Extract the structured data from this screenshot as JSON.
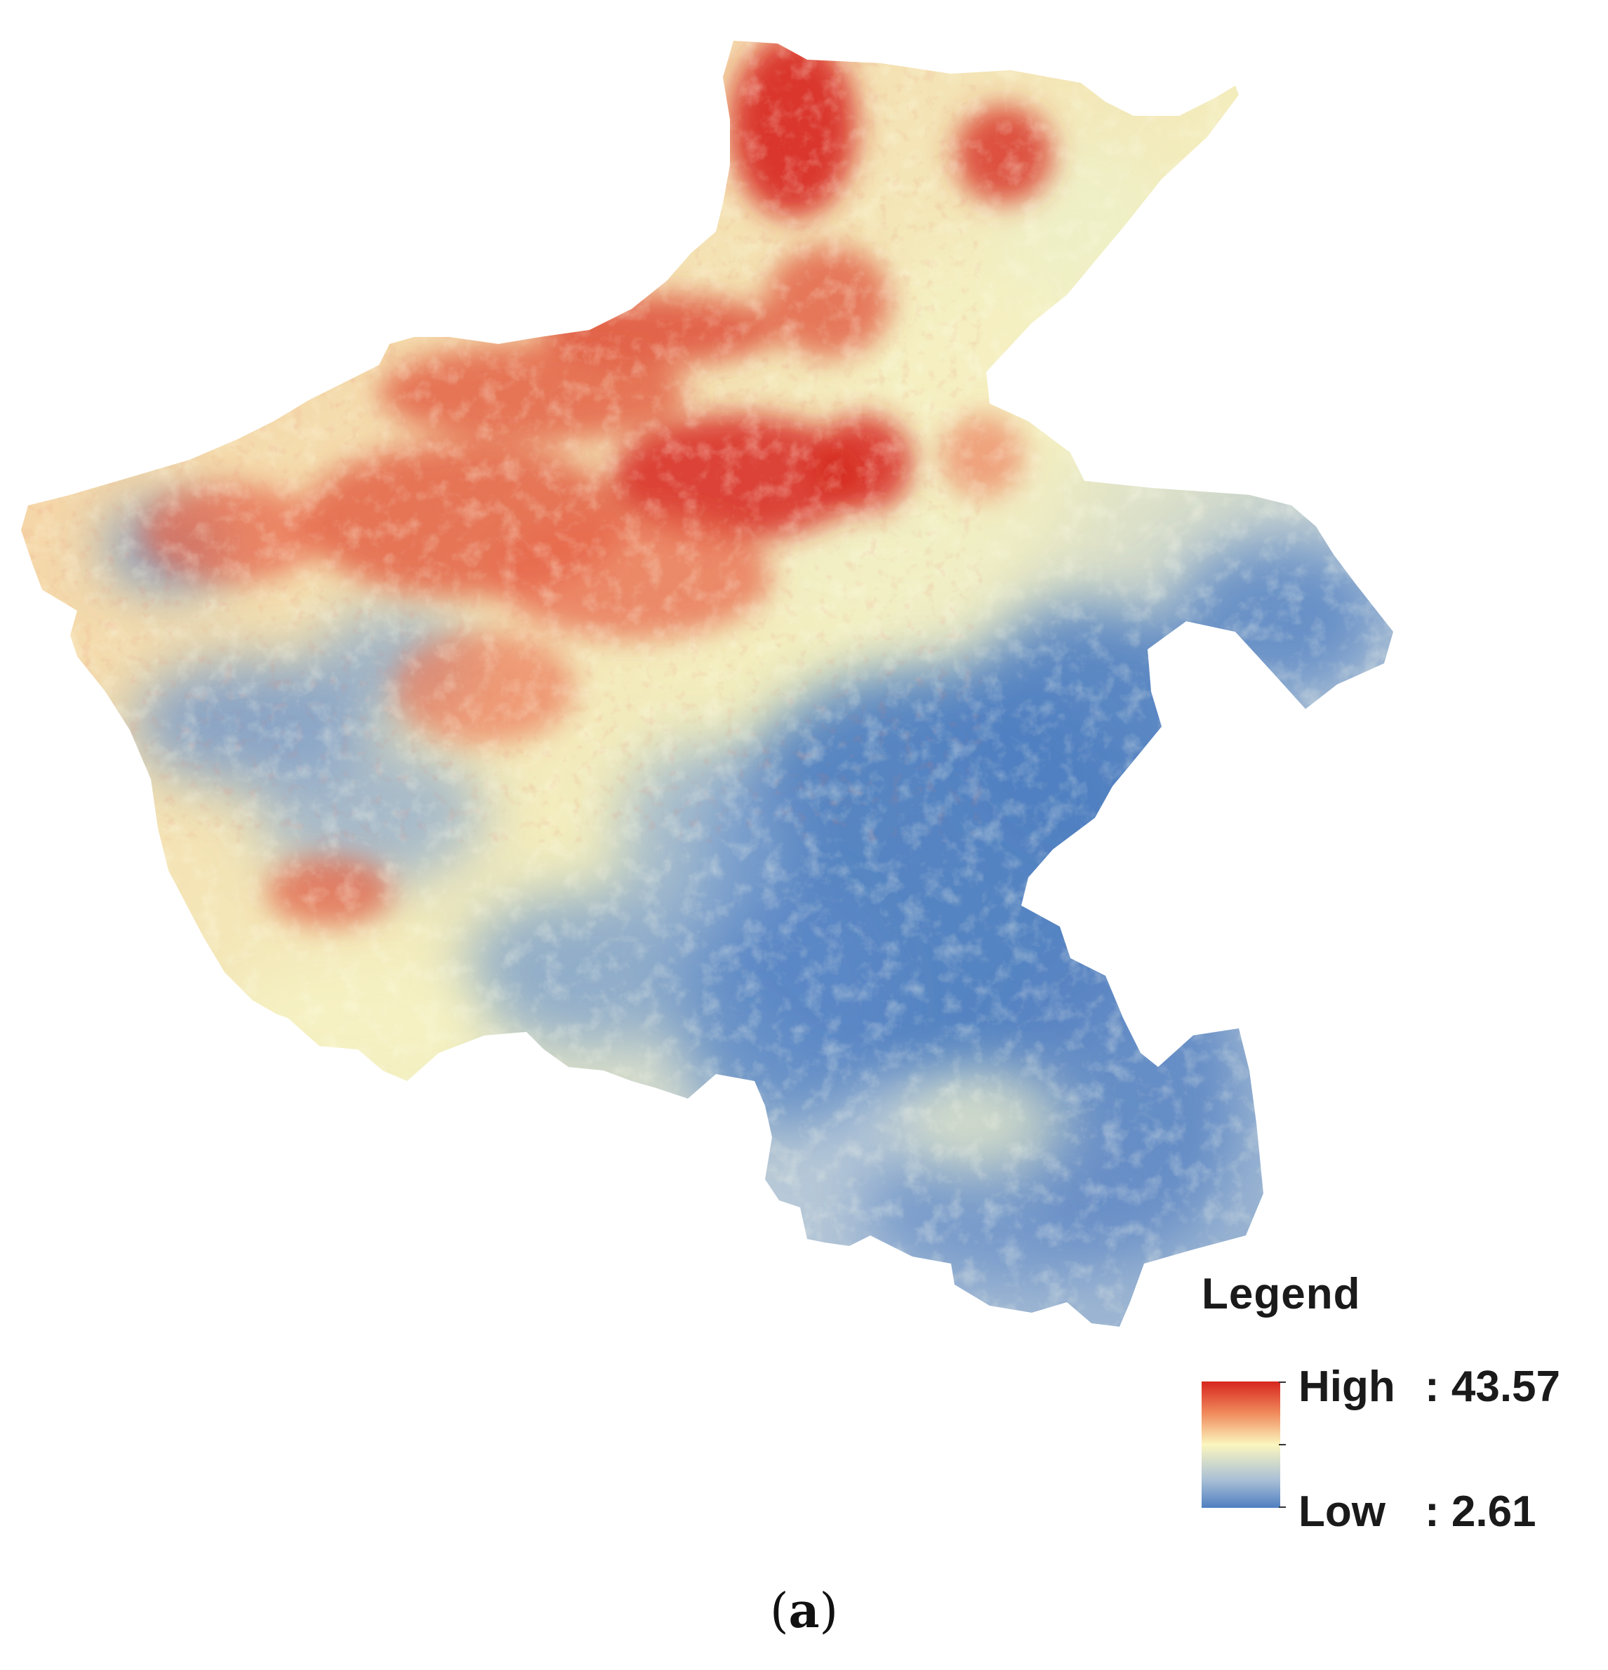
{
  "legend": {
    "title": "Legend",
    "high_label": "High",
    "high_value": ": 43.57",
    "low_label": "Low",
    "low_value": ": 2.61",
    "colors": {
      "high": "#d7261e",
      "mid_high": "#f08a5c",
      "mid": "#fbf6bf",
      "mid_low": "#a9bfd6",
      "low": "#4f7fc1"
    }
  },
  "caption": {
    "open": "(",
    "letter": "a",
    "close": ")"
  }
}
